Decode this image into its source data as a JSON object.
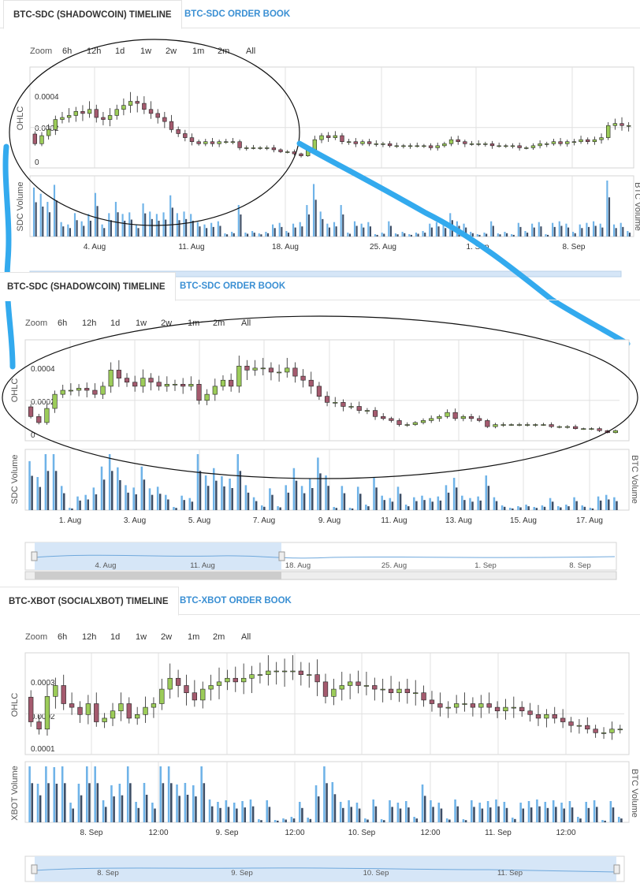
{
  "panels": [
    {
      "id": "sdc-zoomed-out",
      "tabs": {
        "active": "BTC-SDC (SHADOWCOIN) TIMELINE",
        "inactive": "BTC-SDC ORDER BOOK"
      },
      "zoom": {
        "label": "Zoom",
        "options": [
          "6h",
          "12h",
          "1d",
          "1w",
          "2w",
          "1m",
          "2m",
          "All"
        ]
      }
    },
    {
      "id": "sdc-zoomed-in",
      "tabs": {
        "active": "BTC-SDC (SHADOWCOIN) TIMELINE",
        "inactive": "BTC-SDC ORDER BOOK"
      },
      "zoom": {
        "label": "Zoom",
        "options": [
          "6h",
          "12h",
          "1d",
          "1w",
          "2w",
          "1m",
          "2m",
          "All"
        ]
      }
    },
    {
      "id": "xbot",
      "tabs": {
        "active": "BTC-XBOT (SOCIALXBOT) TIMELINE",
        "inactive": "BTC-XBOT ORDER BOOK"
      },
      "zoom": {
        "label": "Zoom",
        "options": [
          "6h",
          "12h",
          "1d",
          "1w",
          "2w",
          "1m",
          "2m",
          "All"
        ]
      }
    }
  ],
  "colors": {
    "up": "#9ccc59",
    "down": "#a45a6e",
    "vol_light": "#6fb3e8",
    "vol_dark": "#3d4e66",
    "annotation": "#33aaee",
    "navigator_fill": "#d6e6f7",
    "grid": "#e0e0e0"
  },
  "chart_data": [
    {
      "id": "sdc-all",
      "type": "candlestick",
      "ylabel": "OHLC",
      "ylabel_right": "",
      "ylim": [
        0,
        0.0005
      ],
      "y_ticks": [
        "0.0004",
        "0.0002",
        "0"
      ],
      "x_ticks": [
        "4. Aug",
        "11. Aug",
        "18. Aug",
        "25. Aug",
        "1. Sep",
        "8. Sep"
      ],
      "volume": {
        "ylabel": "SDC Volume",
        "ylabel_right": "BTC Volume"
      },
      "close": [
        0.00012,
        0.00016,
        0.00019,
        0.00024,
        0.00025,
        0.00026,
        0.00028,
        0.00027,
        0.00029,
        0.00025,
        0.00024,
        0.00026,
        0.00029,
        0.00031,
        0.00033,
        0.00032,
        0.00029,
        0.00027,
        0.00025,
        0.00023,
        0.00019,
        0.00017,
        0.00015,
        0.00013,
        0.00012,
        0.00013,
        0.00012,
        0.00013,
        0.00013,
        0.00013,
        0.0001,
        0.0001,
        0.0001,
        0.0001,
        0.0001,
        9e-05,
        8e-05,
        8e-05,
        7e-05,
        6e-05,
        9e-05,
        0.00014,
        0.00016,
        0.00015,
        0.00016,
        0.00013,
        0.00013,
        0.00012,
        0.00013,
        0.00012,
        0.00012,
        0.00012,
        0.00011,
        0.00011,
        0.00011,
        0.00011,
        0.00011,
        0.00011,
        0.0001,
        0.00011,
        0.00012,
        0.00014,
        0.00013,
        0.00012,
        0.00012,
        0.00012,
        0.00012,
        0.00011,
        0.00011,
        0.00011,
        0.00011,
        0.0001,
        0.0001,
        0.00011,
        0.00012,
        0.00012,
        0.00013,
        0.00012,
        0.00013,
        0.00013,
        0.00014,
        0.00013,
        0.00014,
        0.00015,
        0.00021,
        0.00022,
        0.00021,
        0.00021
      ]
    },
    {
      "id": "sdc-detail",
      "type": "candlestick",
      "ylabel": "OHLC",
      "ylabel_right": "",
      "ylim": [
        0,
        0.0005
      ],
      "y_ticks": [
        "0.0004",
        "0.0002",
        "0"
      ],
      "x_ticks": [
        "1. Aug",
        "3. Aug",
        "5. Aug",
        "7. Aug",
        "9. Aug",
        "11. Aug",
        "13. Aug",
        "15. Aug",
        "17. Aug"
      ],
      "volume": {
        "ylabel": "SDC Volume",
        "ylabel_right": "BTC Volume"
      },
      "navigator_ticks": [
        "4. Aug",
        "11. Aug",
        "18. Aug",
        "25. Aug",
        "1. Sep",
        "8. Sep"
      ],
      "close": [
        0.00012,
        9e-05,
        0.00016,
        0.00023,
        0.00025,
        0.00025,
        0.00026,
        0.00025,
        0.00023,
        0.00027,
        0.00035,
        0.00031,
        0.00029,
        0.00027,
        0.00031,
        0.00029,
        0.00027,
        0.00028,
        0.00028,
        0.00027,
        0.00028,
        0.0002,
        0.00023,
        0.00027,
        0.0003,
        0.00027,
        0.00037,
        0.00035,
        0.00036,
        0.00036,
        0.00034,
        0.00034,
        0.00036,
        0.00032,
        0.0003,
        0.00027,
        0.00022,
        0.00019,
        0.00019,
        0.00017,
        0.00017,
        0.00015,
        0.00015,
        0.00012,
        0.00011,
        0.0001,
        8e-05,
        8e-05,
        9e-05,
        0.0001,
        0.00011,
        0.00012,
        0.00014,
        0.00011,
        0.00012,
        0.00011,
        0.0001,
        7e-05,
        8e-05,
        8e-05,
        8e-05,
        8e-05,
        8e-05,
        8e-05,
        8e-05,
        7e-05,
        7e-05,
        7e-05,
        6e-05,
        6e-05,
        6e-05,
        5e-05,
        4e-05,
        5e-05
      ]
    },
    {
      "id": "xbot-detail",
      "type": "candlestick",
      "ylabel": "OHLC",
      "ylabel_right": "",
      "ylim": [
        8e-05,
        0.00036
      ],
      "y_ticks": [
        "0.0003",
        "0.0002",
        "0.0001"
      ],
      "x_ticks": [
        "8. Sep",
        "12:00",
        "9. Sep",
        "12:00",
        "10. Sep",
        "12:00",
        "11. Sep",
        "12:00"
      ],
      "volume": {
        "ylabel": "XBOT Volume",
        "ylabel_right": "BTC Volume"
      },
      "navigator_ticks": [
        "8. Sep",
        "9. Sep",
        "10. Sep",
        "11. Sep"
      ],
      "close": [
        0.00017,
        0.00015,
        0.00024,
        0.00027,
        0.00022,
        0.00021,
        0.00019,
        0.00022,
        0.00017,
        0.00018,
        0.0002,
        0.00022,
        0.00018,
        0.00019,
        0.00021,
        0.00022,
        0.00026,
        0.00029,
        0.00027,
        0.00025,
        0.00023,
        0.00026,
        0.00027,
        0.00028,
        0.00029,
        0.00028,
        0.00029,
        0.0003,
        0.0003,
        0.00031,
        0.00031,
        0.00031,
        0.00031,
        0.0003,
        0.0003,
        0.00028,
        0.00024,
        0.00026,
        0.00027,
        0.00028,
        0.00027,
        0.00027,
        0.00026,
        0.00026,
        0.00025,
        0.00026,
        0.00025,
        0.00025,
        0.00023,
        0.00022,
        0.00021,
        0.00021,
        0.00022,
        0.00022,
        0.00021,
        0.00022,
        0.00021,
        0.0002,
        0.00021,
        0.00021,
        0.0002,
        0.00019,
        0.00018,
        0.00019,
        0.00018,
        0.00017,
        0.00016,
        0.00016,
        0.00015,
        0.00014,
        0.00014,
        0.00015,
        0.00015
      ]
    }
  ]
}
